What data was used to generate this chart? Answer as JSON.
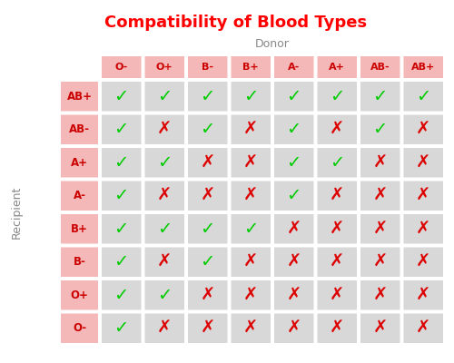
{
  "title": "Compatibility of Blood Types",
  "title_color": "#ff0000",
  "donor_label": "Donor",
  "recipient_label": "Recipient",
  "donor_types": [
    "O-",
    "O+",
    "B-",
    "B+",
    "A-",
    "A+",
    "AB-",
    "AB+"
  ],
  "recipient_types": [
    "AB+",
    "AB-",
    "A+",
    "A-",
    "B+",
    "B-",
    "O+",
    "O-"
  ],
  "compatibility": [
    [
      1,
      1,
      1,
      1,
      1,
      1,
      1,
      1
    ],
    [
      1,
      0,
      1,
      0,
      1,
      0,
      1,
      0
    ],
    [
      1,
      1,
      0,
      0,
      1,
      1,
      0,
      0
    ],
    [
      1,
      0,
      0,
      0,
      1,
      0,
      0,
      0
    ],
    [
      1,
      1,
      1,
      1,
      0,
      0,
      0,
      0
    ],
    [
      1,
      0,
      1,
      0,
      0,
      0,
      0,
      0
    ],
    [
      1,
      1,
      0,
      0,
      0,
      0,
      0,
      0
    ],
    [
      1,
      0,
      0,
      0,
      0,
      0,
      0,
      0
    ]
  ],
  "header_bg": "#f4b8b8",
  "row_label_bg": "#f4b8b8",
  "cell_bg": "#d8d8d8",
  "check_color": "#00cc00",
  "cross_color": "#dd0000",
  "header_text_color": "#cc0000",
  "row_label_text_color": "#cc0000",
  "donor_label_color": "#888888",
  "recipient_label_color": "#888888",
  "background_color": "#ffffff",
  "figsize": [
    5.0,
    4.0
  ],
  "dpi": 100
}
